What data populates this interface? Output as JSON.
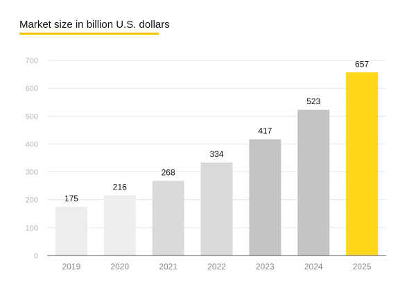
{
  "title": "Market size in billion U.S. dollars",
  "colors": {
    "accent": "#f2c500",
    "highlight_bar": "#ffd617",
    "bar_2019": "#ededeb",
    "bar_2020": "#ededeb",
    "bar_2021": "#dadada",
    "bar_2022": "#dadada",
    "bar_2023": "#c4c4c4",
    "bar_2024": "#c4c4c4",
    "grid": "#e6e6e6",
    "axis": "#555555",
    "tick_text": "#b5b5b5",
    "value_text": "#111111",
    "year_text": "#888888"
  },
  "chart_data": {
    "type": "bar",
    "title": "Market size in billion U.S. dollars",
    "xlabel": "",
    "ylabel": "",
    "categories": [
      "2019",
      "2020",
      "2021",
      "2022",
      "2023",
      "2024",
      "2025"
    ],
    "values": [
      175,
      216,
      268,
      334,
      417,
      523,
      657
    ],
    "ylim": [
      0,
      700
    ],
    "yticks": [
      0,
      100,
      200,
      300,
      400,
      500,
      600,
      700
    ],
    "grid": true,
    "data_labels": true,
    "legend": "none"
  }
}
